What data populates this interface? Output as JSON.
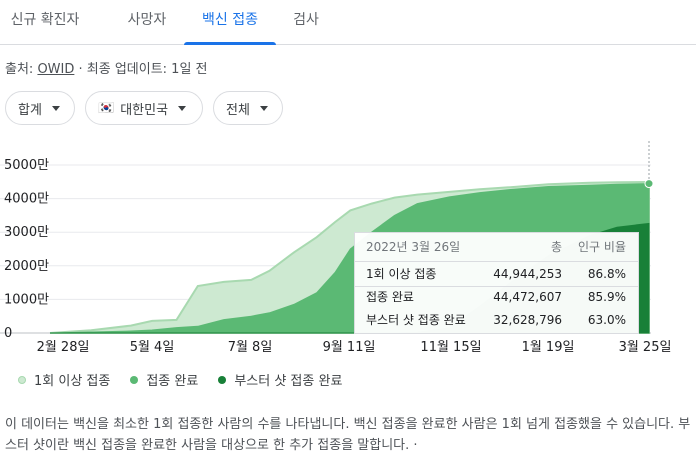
{
  "tabs": [
    {
      "label": "신규 확진자",
      "active": false
    },
    {
      "label": "사망자",
      "active": false
    },
    {
      "label": "백신 접종",
      "active": true
    },
    {
      "label": "검사",
      "active": false
    }
  ],
  "source": {
    "prefix": "출처: ",
    "link": "OWID",
    "suffix": " · 최종 업데이트: 1일 전"
  },
  "filters": {
    "total": "합계",
    "country_flag": "🇰🇷",
    "country": "대한민국",
    "scope": "전체"
  },
  "colors": {
    "first_dose": "#cde9d1",
    "first_dose_line": "#a8d9b0",
    "fully_vaccinated": "#5bb974",
    "booster": "#188038",
    "accent": "#1a73e8"
  },
  "chart_data": {
    "type": "area",
    "y_ticks": [
      "5000만",
      "4000만",
      "3000만",
      "2000만",
      "1000만",
      "0"
    ],
    "y_tick_values": [
      50000000,
      40000000,
      30000000,
      20000000,
      10000000,
      0
    ],
    "ylim": [
      0,
      50000000
    ],
    "x_ticks": [
      "2월 28일",
      "5월 4일",
      "7월 8일",
      "9월 11일",
      "11월 15일",
      "1월 19일",
      "3월 25일"
    ],
    "x": [
      "2021-02-26",
      "2021-03-25",
      "2021-04-20",
      "2021-05-04",
      "2021-05-20",
      "2021-06-03",
      "2021-06-20",
      "2021-07-08",
      "2021-07-20",
      "2021-08-05",
      "2021-08-20",
      "2021-09-01",
      "2021-09-11",
      "2021-09-25",
      "2021-10-10",
      "2021-10-25",
      "2021-11-15",
      "2021-12-05",
      "2021-12-25",
      "2022-01-19",
      "2022-02-15",
      "2022-03-05",
      "2022-03-26"
    ],
    "series": [
      {
        "name": "1회 이상 접종",
        "color": "#cde9d1",
        "values": [
          0,
          800000,
          2200000,
          3600000,
          3900000,
          14000000,
          15200000,
          15800000,
          18500000,
          24000000,
          28500000,
          33000000,
          36500000,
          38500000,
          40300000,
          41200000,
          42000000,
          42800000,
          43400000,
          44300000,
          44700000,
          44850000,
          44944253
        ]
      },
      {
        "name": "접종 완료",
        "color": "#5bb974",
        "values": [
          0,
          300000,
          600000,
          900000,
          1600000,
          2000000,
          4000000,
          5000000,
          6000000,
          8500000,
          12000000,
          18000000,
          25000000,
          30000000,
          35000000,
          38500000,
          40500000,
          41800000,
          42700000,
          43600000,
          44000000,
          44300000,
          44472607
        ]
      },
      {
        "name": "부스터 샷 접종 완료",
        "color": "#188038",
        "values": [
          0,
          0,
          0,
          0,
          0,
          0,
          0,
          0,
          0,
          0,
          0,
          0,
          0,
          0,
          0,
          200000,
          1500000,
          8000000,
          15000000,
          23000000,
          29000000,
          31500000,
          32628796
        ]
      }
    ],
    "tooltip": {
      "date": "2022년 3월 26일",
      "col_total": "총",
      "col_pct": "인구 비율",
      "rows": [
        {
          "label": "1회 이상 접종",
          "total": "44,944,253",
          "pct": "86.8%"
        },
        {
          "label": "접종 완료",
          "total": "44,472,607",
          "pct": "85.9%"
        },
        {
          "label": "부스터 샷 접종 완료",
          "total": "32,628,796",
          "pct": "63.0%"
        }
      ]
    },
    "legend": [
      {
        "label": "1회 이상 접종",
        "color": "#cde9d1"
      },
      {
        "label": "접종 완료",
        "color": "#5bb974"
      },
      {
        "label": "부스터 샷 접종 완료",
        "color": "#188038"
      }
    ]
  },
  "footnote": "이 데이터는 백신을 최소한 1회 접종한 사람의 수를 나타냅니다. 백신 접종을 완료한 사람은 1회 넘게 접종했을 수 있습니다. 부스터 샷이란 백신 접종을 완료한 사람을 대상으로 한 추가 접종을 말합니다. ·"
}
